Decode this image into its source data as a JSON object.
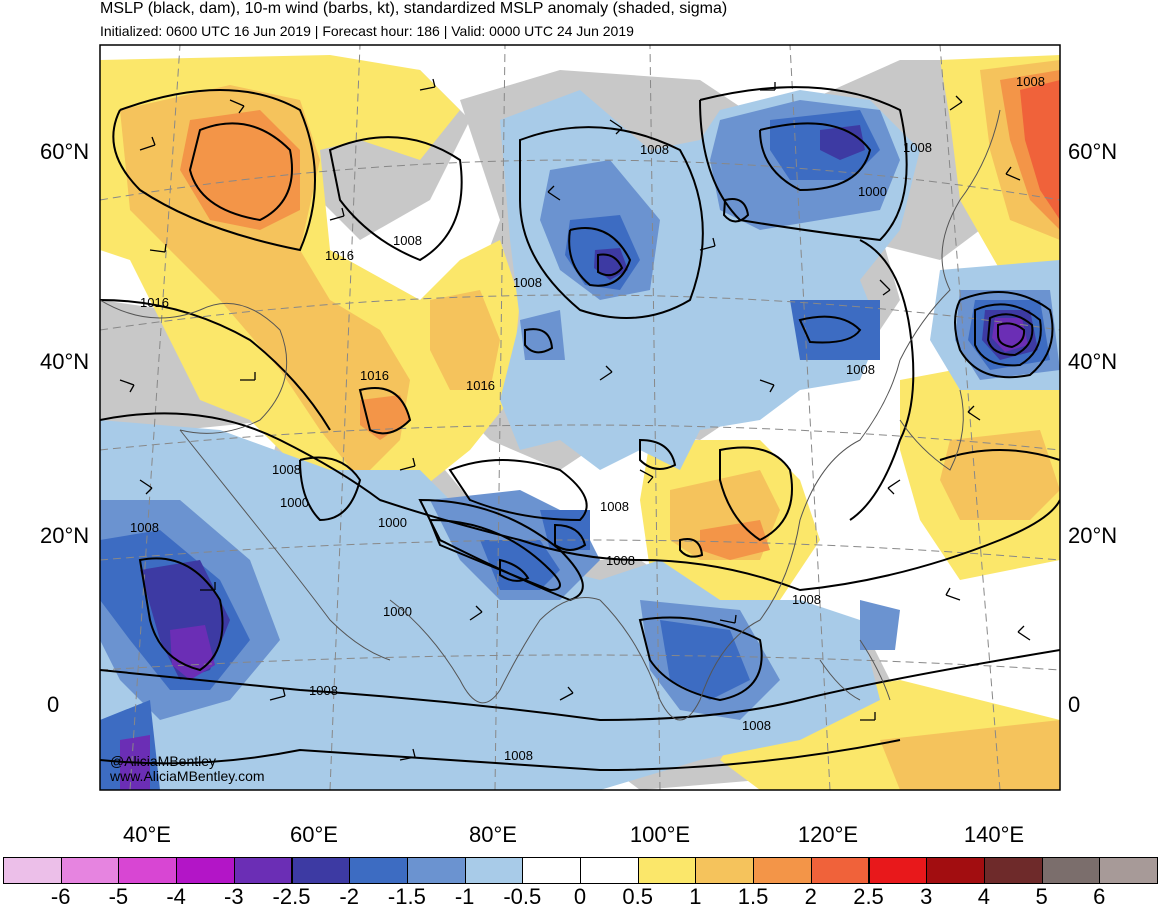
{
  "header": {
    "title": "MSLP (black, dam), 10-m wind (barbs, kt), standardized MSLP anomaly (shaded, sigma)",
    "subtitle": "Initialized: 0600 UTC 16 Jun 2019 | Forecast hour: 186 | Valid: 0000 UTC 24 Jun 2019"
  },
  "axes": {
    "lat_left": [
      "60°N",
      "40°N",
      "20°N",
      "0"
    ],
    "lat_right": [
      "60°N",
      "40°N",
      "20°N",
      "0"
    ],
    "lon": [
      "40°E",
      "60°E",
      "80°E",
      "100°E",
      "120°E",
      "140°E"
    ]
  },
  "credits": {
    "handle": "@AliciaMBentley",
    "site": "www.AliciaMBentley.com"
  },
  "colorbar": {
    "labels": [
      "-6",
      "-5",
      "-4",
      "-3",
      "-2.5",
      "-2",
      "-1.5",
      "-1",
      "-0.5",
      "0",
      "0.5",
      "1",
      "1.5",
      "2",
      "2.5",
      "3",
      "4",
      "5",
      "6"
    ],
    "colors": [
      "#ecbfe9",
      "#e684e0",
      "#d846d3",
      "#b315c7",
      "#6b2eb5",
      "#3d3aa3",
      "#3d6cc2",
      "#6b93d0",
      "#a8cbe8",
      "#ffffff",
      "#ffffff",
      "#fbe76a",
      "#f5c35c",
      "#f39548",
      "#f0623a",
      "#e8181b",
      "#a20d10",
      "#6e2a2a",
      "#7b6e6c",
      "#a79a98"
    ]
  },
  "isobar_labels": [
    "1008",
    "1016",
    "1008",
    "1016",
    "1016",
    "1016",
    "1008",
    "1008",
    "1000",
    "1008",
    "1008",
    "1000",
    "1000",
    "1008",
    "1008",
    "1008",
    "1000",
    "1008",
    "1008",
    "1008",
    "1008",
    "1008"
  ]
}
